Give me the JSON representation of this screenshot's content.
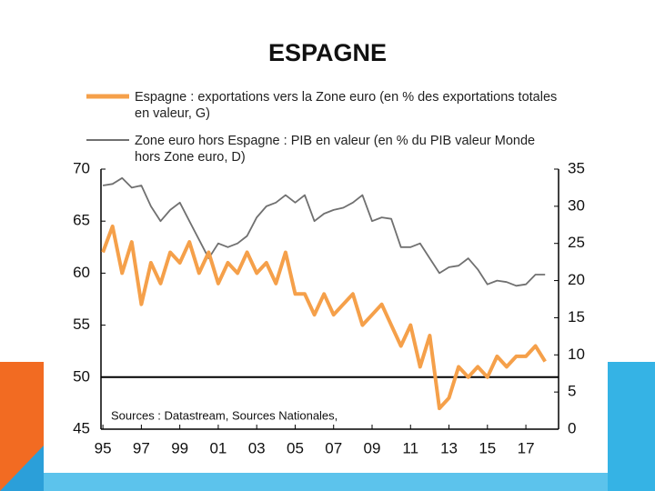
{
  "chart_data": {
    "type": "line",
    "title": "ESPAGNE",
    "x": [
      1995,
      1995.5,
      1996,
      1996.5,
      1997,
      1997.5,
      1998,
      1998.5,
      1999,
      1999.5,
      2000,
      2000.5,
      2001,
      2001.5,
      2002,
      2002.5,
      2003,
      2003.5,
      2004,
      2004.5,
      2005,
      2005.5,
      2006,
      2006.5,
      2007,
      2007.5,
      2008,
      2008.5,
      2009,
      2009.5,
      2010,
      2010.5,
      2011,
      2011.5,
      2012,
      2012.5,
      2013,
      2013.5,
      2014,
      2014.5,
      2015,
      2015.5,
      2016,
      2016.5,
      2017,
      2017.5,
      2018
    ],
    "series": [
      {
        "name": "Espagne : exportations vers la Zone euro (en % des exportations totales en valeur, G)",
        "color": "#f5a04a",
        "axis": "y",
        "values": [
          62,
          64.5,
          60,
          63,
          57,
          61,
          59,
          62,
          61,
          63,
          60,
          62,
          59,
          61,
          60,
          62,
          60,
          61,
          59,
          62,
          58,
          58,
          56,
          58,
          56,
          57,
          58,
          55,
          56,
          57,
          55,
          53,
          55,
          51,
          54,
          47,
          48,
          51,
          50,
          51,
          50,
          52,
          51,
          52,
          52,
          53,
          51.5
        ]
      },
      {
        "name": "Zone euro hors Espagne : PIB en valeur (en % du PIB valeur Monde hors Zone euro, D)",
        "color": "#707070",
        "axis": "y2",
        "values": [
          32.8,
          33,
          33.8,
          32.5,
          32.8,
          30,
          28,
          29.5,
          30.5,
          28,
          25.5,
          23,
          25,
          24.5,
          25,
          26,
          28.5,
          30,
          30.5,
          31.5,
          30.5,
          31.5,
          28,
          29,
          29.5,
          29.8,
          30.5,
          31.5,
          28,
          28.5,
          28.3,
          24.5,
          24.5,
          25,
          23,
          21,
          21.8,
          22,
          23,
          21.5,
          19.5,
          20,
          19.8,
          19.3,
          19.5,
          20.8,
          20.8
        ]
      }
    ],
    "xlim": [
      1994.9,
      2018.7
    ],
    "xticks": [
      {
        "value": 1995,
        "label": "95"
      },
      {
        "value": 1997,
        "label": "97"
      },
      {
        "value": 1999,
        "label": "99"
      },
      {
        "value": 2001,
        "label": "01"
      },
      {
        "value": 2003,
        "label": "03"
      },
      {
        "value": 2005,
        "label": "05"
      },
      {
        "value": 2007,
        "label": "07"
      },
      {
        "value": 2009,
        "label": "09"
      },
      {
        "value": 2011,
        "label": "11"
      },
      {
        "value": 2013,
        "label": "13"
      },
      {
        "value": 2015,
        "label": "15"
      },
      {
        "value": 2017,
        "label": "17"
      }
    ],
    "ylim": [
      45,
      70
    ],
    "yticks": [
      45,
      50,
      55,
      60,
      65,
      70
    ],
    "y2lim": [
      0,
      35
    ],
    "y2ticks": [
      0,
      5,
      10,
      15,
      20,
      25,
      30,
      35
    ],
    "hline": 50,
    "annotation": "Sources : Datastream, Sources Nationales,"
  }
}
